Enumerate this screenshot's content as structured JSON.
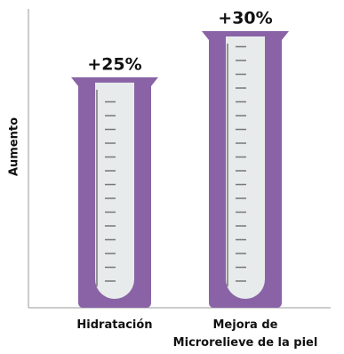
{
  "chart_data": {
    "type": "bar",
    "y_label": "Aumento",
    "categories": [
      "Hidratación",
      "Mejora de\nMicrorelieve de la piel"
    ],
    "values": [
      25,
      30
    ],
    "value_labels": [
      "+25%",
      "+30%"
    ],
    "color": "#8a63a6"
  }
}
